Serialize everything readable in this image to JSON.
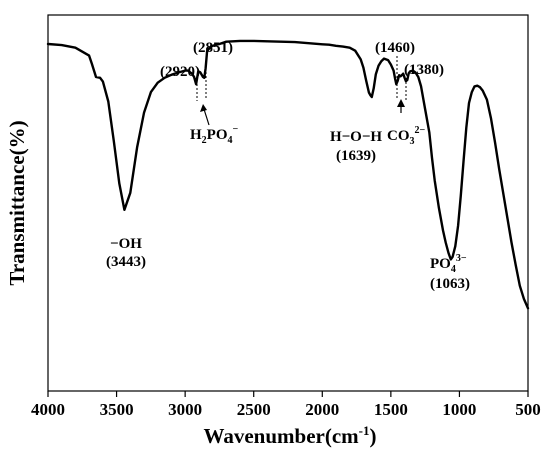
{
  "chart_data": {
    "type": "line",
    "title": "",
    "xlabel": "Wavenumber(cm",
    "xlabel_sup": "-1",
    "xlabel_close": ")",
    "ylabel": "Transmittance(%)",
    "xlim": [
      4000,
      500
    ],
    "ylim": [
      0,
      100
    ],
    "x_reversed": true,
    "yticks_labels": false,
    "xticks": [
      "4000",
      "3500",
      "3000",
      "2500",
      "2000",
      "1500",
      "1000",
      "500"
    ],
    "grid": false,
    "line_color": "#000000",
    "series": [
      {
        "x": [
          4000,
          3900,
          3800,
          3700,
          3680,
          3650,
          3620,
          3600,
          3560,
          3520,
          3480,
          3443,
          3400,
          3350,
          3300,
          3250,
          3200,
          3150,
          3100,
          3050,
          3000,
          2980,
          2950,
          2935,
          2920,
          2905,
          2890,
          2870,
          2860,
          2851,
          2840,
          2820,
          2800,
          2750,
          2700,
          2600,
          2500,
          2400,
          2300,
          2200,
          2100,
          2000,
          1950,
          1900,
          1850,
          1800,
          1760,
          1720,
          1700,
          1680,
          1660,
          1650,
          1639,
          1625,
          1610,
          1590,
          1570,
          1550,
          1520,
          1500,
          1480,
          1470,
          1460,
          1450,
          1440,
          1430,
          1420,
          1410,
          1400,
          1390,
          1380,
          1370,
          1360,
          1340,
          1320,
          1300,
          1280,
          1250,
          1220,
          1200,
          1180,
          1150,
          1120,
          1100,
          1080,
          1063,
          1050,
          1030,
          1010,
          990,
          970,
          950,
          930,
          910,
          890,
          870,
          850,
          830,
          800,
          770,
          740,
          710,
          680,
          650,
          620,
          590,
          560,
          530,
          500
        ],
        "y": [
          92.3,
          92.0,
          91.3,
          89.2,
          87.0,
          83.5,
          83.3,
          82.3,
          77.0,
          66.5,
          55.2,
          48.2,
          52.7,
          64.8,
          74.0,
          79.5,
          82.0,
          83.3,
          84.1,
          84.7,
          85.2,
          85.2,
          84.4,
          83.5,
          81.6,
          85.0,
          84.8,
          83.5,
          83.3,
          85.8,
          90.4,
          91.3,
          91.8,
          92.3,
          92.9,
          93.1,
          93.1,
          93.0,
          92.9,
          92.8,
          92.5,
          92.2,
          92.1,
          91.8,
          91.6,
          91.3,
          90.5,
          88.2,
          86.0,
          82.5,
          79.4,
          78.7,
          78.2,
          80.5,
          84.2,
          86.5,
          87.7,
          88.4,
          88.0,
          86.8,
          85.2,
          83.2,
          81.6,
          82.5,
          84.0,
          83.7,
          84.0,
          84.4,
          83.3,
          82.4,
          82.7,
          84.5,
          85.0,
          85.2,
          84.7,
          83.5,
          81.1,
          75.0,
          68.8,
          62.0,
          56.0,
          48.7,
          42.7,
          39.5,
          36.7,
          35.0,
          35.7,
          38.5,
          44.0,
          52.0,
          61.0,
          70.0,
          76.6,
          79.5,
          81.0,
          81.2,
          80.8,
          79.9,
          77.5,
          72.5,
          66.0,
          59.0,
          52.5,
          46.0,
          39.5,
          33.5,
          28.0,
          24.5,
          22.0
        ]
      }
    ],
    "annotations": {
      "oh": {
        "label": "−OH",
        "value": "(3443)"
      },
      "p2920": {
        "label": "(2920)"
      },
      "p2851": {
        "label": "(2851)"
      },
      "h2po4": {
        "main": "H",
        "sub1": "2",
        "mid": "PO",
        "sub2": "4",
        "sup": "−"
      },
      "hoh": {
        "label": "H−O−H",
        "value": "(1639)"
      },
      "p1460": {
        "label": "(1460)"
      },
      "p1380": {
        "label": "(1380)"
      },
      "co3": {
        "main": "CO",
        "sub": "3",
        "sup": "2−"
      },
      "po4": {
        "main": "PO",
        "sub": "4",
        "sup": "3−",
        "value": "(1063)"
      }
    }
  }
}
